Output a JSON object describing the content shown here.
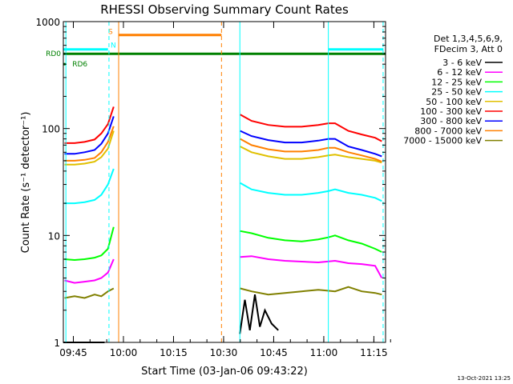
{
  "chart_data": {
    "type": "line",
    "title": "RHESSI Observing Summary Count Rates",
    "xlabel": "Start Time (03-Jan-06 09:43:22)",
    "ylabel": "Count Rate (s⁻¹ detector⁻¹)",
    "y_scale": "log",
    "ylim": [
      1,
      1000
    ],
    "xlim_minutes_from_start": [
      -1.37,
      95.13
    ],
    "x_ticks": [
      {
        "label": "09:45",
        "t": 1.63
      },
      {
        "label": "10:00",
        "t": 16.63
      },
      {
        "label": "10:15",
        "t": 31.63
      },
      {
        "label": "10:30",
        "t": 46.63
      },
      {
        "label": "10:45",
        "t": 61.63
      },
      {
        "label": "11:00",
        "t": 76.63
      },
      {
        "label": "11:15",
        "t": 91.63
      }
    ],
    "y_ticks": [
      {
        "label": "1",
        "v": 1
      },
      {
        "label": "10",
        "v": 10
      },
      {
        "label": "100",
        "v": 100
      },
      {
        "label": "1000",
        "v": 1000
      }
    ],
    "legend_header": [
      "Det 1,3,4,5,6,9,",
      "FDecim 3, Att 0"
    ],
    "legend_position": "right",
    "series": [
      {
        "name": "3 - 6 keV",
        "color": "#000000",
        "segments": [
          {
            "x": [
              -1.4,
              8.5,
              10.0,
              11.0
            ],
            "y": [
              1,
              1,
              1,
              1
            ]
          },
          {
            "x": [
              51.5,
              53.0,
              54.5,
              56.0,
              57.5,
              59.0,
              61.0,
              63.0
            ],
            "y": [
              1.2,
              2.5,
              1.3,
              2.8,
              1.4,
              2.0,
              1.5,
              1.3
            ]
          }
        ]
      },
      {
        "name": "6 - 12 keV",
        "color": "#ff00ff",
        "segments": [
          {
            "x": [
              -1.0,
              2.0,
              5.0,
              8.0,
              10.0,
              12.0,
              13.7
            ],
            "y": [
              3.8,
              3.6,
              3.7,
              3.8,
              4.0,
              4.5,
              6.0
            ]
          },
          {
            "x": [
              51.6,
              55.0,
              60.0,
              65.0,
              70.0,
              75.0,
              80.0,
              84.0,
              88.0,
              92.0,
              94.0
            ],
            "y": [
              6.3,
              6.4,
              6.0,
              5.8,
              5.7,
              5.6,
              5.8,
              5.5,
              5.4,
              5.2,
              4.0
            ]
          }
        ]
      },
      {
        "name": "12 - 25 keV",
        "color": "#00ff00",
        "segments": [
          {
            "x": [
              -1.0,
              2.0,
              5.0,
              8.0,
              10.0,
              12.0,
              13.7
            ],
            "y": [
              6.0,
              5.9,
              6.0,
              6.2,
              6.5,
              7.5,
              12.0
            ]
          },
          {
            "x": [
              51.6,
              55.0,
              60.0,
              65.0,
              70.0,
              75.0,
              78.0,
              80.0,
              84.0,
              88.0,
              92.0,
              94.0
            ],
            "y": [
              11.0,
              10.5,
              9.5,
              9.0,
              8.8,
              9.2,
              9.6,
              10.0,
              9.0,
              8.4,
              7.5,
              7.0
            ]
          }
        ]
      },
      {
        "name": "25 - 50 keV",
        "color": "#00ffff",
        "segments": [
          {
            "x": [
              -1.0,
              2.0,
              5.0,
              8.0,
              10.0,
              12.0,
              13.7
            ],
            "y": [
              20.0,
              20.0,
              20.5,
              21.5,
              24.0,
              30.0,
              42.0
            ]
          },
          {
            "x": [
              51.6,
              55.0,
              60.0,
              65.0,
              70.0,
              75.0,
              78.0,
              80.0,
              84.0,
              88.0,
              92.0,
              94.0
            ],
            "y": [
              31.0,
              27.0,
              25.0,
              24.0,
              24.0,
              25.0,
              26.0,
              27.0,
              25.0,
              24.0,
              22.5,
              21.0
            ]
          }
        ]
      },
      {
        "name": "50 - 100 keV",
        "color": "#e0c000",
        "segments": [
          {
            "x": [
              -1.0,
              2.0,
              5.0,
              8.0,
              10.0,
              12.0,
              13.7
            ],
            "y": [
              46.0,
              46.0,
              47.0,
              49.0,
              54.0,
              65.0,
              95.0
            ]
          },
          {
            "x": [
              51.6,
              55.0,
              60.0,
              65.0,
              70.0,
              75.0,
              78.0,
              80.0,
              84.0,
              88.0,
              92.0,
              94.0
            ],
            "y": [
              68.0,
              60.0,
              55.0,
              52.0,
              52.0,
              54.0,
              56.0,
              57.0,
              54.0,
              52.0,
              50.0,
              48.0
            ]
          }
        ]
      },
      {
        "name": "100 - 300 keV",
        "color": "#ff0000",
        "segments": [
          {
            "x": [
              -1.0,
              2.0,
              5.0,
              8.0,
              10.0,
              12.0,
              13.7
            ],
            "y": [
              73.0,
              73.0,
              75.0,
              79.0,
              90.0,
              110.0,
              160.0
            ]
          },
          {
            "x": [
              51.6,
              55.0,
              60.0,
              65.0,
              70.0,
              75.0,
              78.0,
              80.0,
              84.0,
              88.0,
              92.0,
              94.0
            ],
            "y": [
              135.0,
              118.0,
              108.0,
              104.0,
              104.0,
              108.0,
              112.0,
              112.0,
              95.0,
              88.0,
              82.0,
              76.0
            ]
          }
        ]
      },
      {
        "name": "300 - 800 keV",
        "color": "#0000ff",
        "segments": [
          {
            "x": [
              -1.0,
              2.0,
              5.0,
              8.0,
              10.0,
              12.0,
              13.7
            ],
            "y": [
              58.0,
              58.0,
              60.0,
              63.0,
              72.0,
              90.0,
              130.0
            ]
          },
          {
            "x": [
              51.6,
              55.0,
              60.0,
              65.0,
              70.0,
              75.0,
              78.0,
              80.0,
              84.0,
              88.0,
              92.0,
              94.0
            ],
            "y": [
              95.0,
              85.0,
              78.0,
              74.0,
              74.0,
              77.0,
              80.0,
              80.0,
              68.0,
              63.0,
              58.0,
              55.0
            ]
          }
        ]
      },
      {
        "name": "800 - 7000 keV",
        "color": "#ff8000",
        "segments": [
          {
            "x": [
              -1.0,
              2.0,
              5.0,
              8.0,
              10.0,
              12.0,
              13.7
            ],
            "y": [
              50.0,
              50.0,
              51.0,
              53.0,
              60.0,
              75.0,
              105.0
            ]
          },
          {
            "x": [
              51.6,
              55.0,
              60.0,
              65.0,
              70.0,
              75.0,
              78.0,
              80.0,
              84.0,
              88.0,
              92.0,
              94.0
            ],
            "y": [
              80.0,
              70.0,
              64.0,
              61.0,
              61.0,
              63.0,
              66.0,
              66.0,
              60.0,
              56.0,
              52.0,
              49.0
            ]
          }
        ]
      },
      {
        "name": "7000 - 15000 keV",
        "color": "#808000",
        "segments": [
          {
            "x": [
              -1.0,
              2.0,
              5.0,
              8.0,
              10.0,
              12.0,
              13.7
            ],
            "y": [
              2.6,
              2.7,
              2.6,
              2.8,
              2.7,
              3.0,
              3.2
            ]
          },
          {
            "x": [
              51.6,
              55.0,
              60.0,
              65.0,
              70.0,
              75.0,
              80.0,
              84.0,
              88.0,
              92.0,
              94.0
            ],
            "y": [
              3.2,
              3.0,
              2.8,
              2.9,
              3.0,
              3.1,
              3.0,
              3.3,
              3.0,
              2.9,
              2.8
            ]
          }
        ]
      }
    ],
    "flag_bars": [
      {
        "name": "RD0",
        "color": "#008000",
        "y": 500,
        "x": [
          -1.37,
          95.13
        ]
      },
      {
        "name": "RD6",
        "color": "#008000",
        "y": 400,
        "x": [
          -1.37,
          -0.6
        ]
      },
      {
        "name": "S",
        "color": "#ff8000",
        "y": 750,
        "x": [
          15.2,
          46.0
        ]
      },
      {
        "name": "N",
        "color": "#00ffff",
        "y": 550,
        "x": [
          -1.37,
          12.0
        ]
      },
      {
        "name": "N",
        "color": "#00ffff",
        "y": 550,
        "x": [
          78.0,
          94.5
        ]
      }
    ],
    "vlines": [
      {
        "color": "#00ffff",
        "dashed": false,
        "t": -0.6
      },
      {
        "color": "#00ffff",
        "dashed": true,
        "t": 12.3
      },
      {
        "color": "#ff8000",
        "dashed": false,
        "t": 15.2
      },
      {
        "color": "#ff8000",
        "dashed": true,
        "t": 46.0
      },
      {
        "color": "#00ffff",
        "dashed": false,
        "t": 51.5
      },
      {
        "color": "#00ffff",
        "dashed": false,
        "t": 78.0
      },
      {
        "color": "#00ffff",
        "dashed": true,
        "t": 94.4
      }
    ]
  },
  "corner_date": "13-Oct-2021 13:25"
}
